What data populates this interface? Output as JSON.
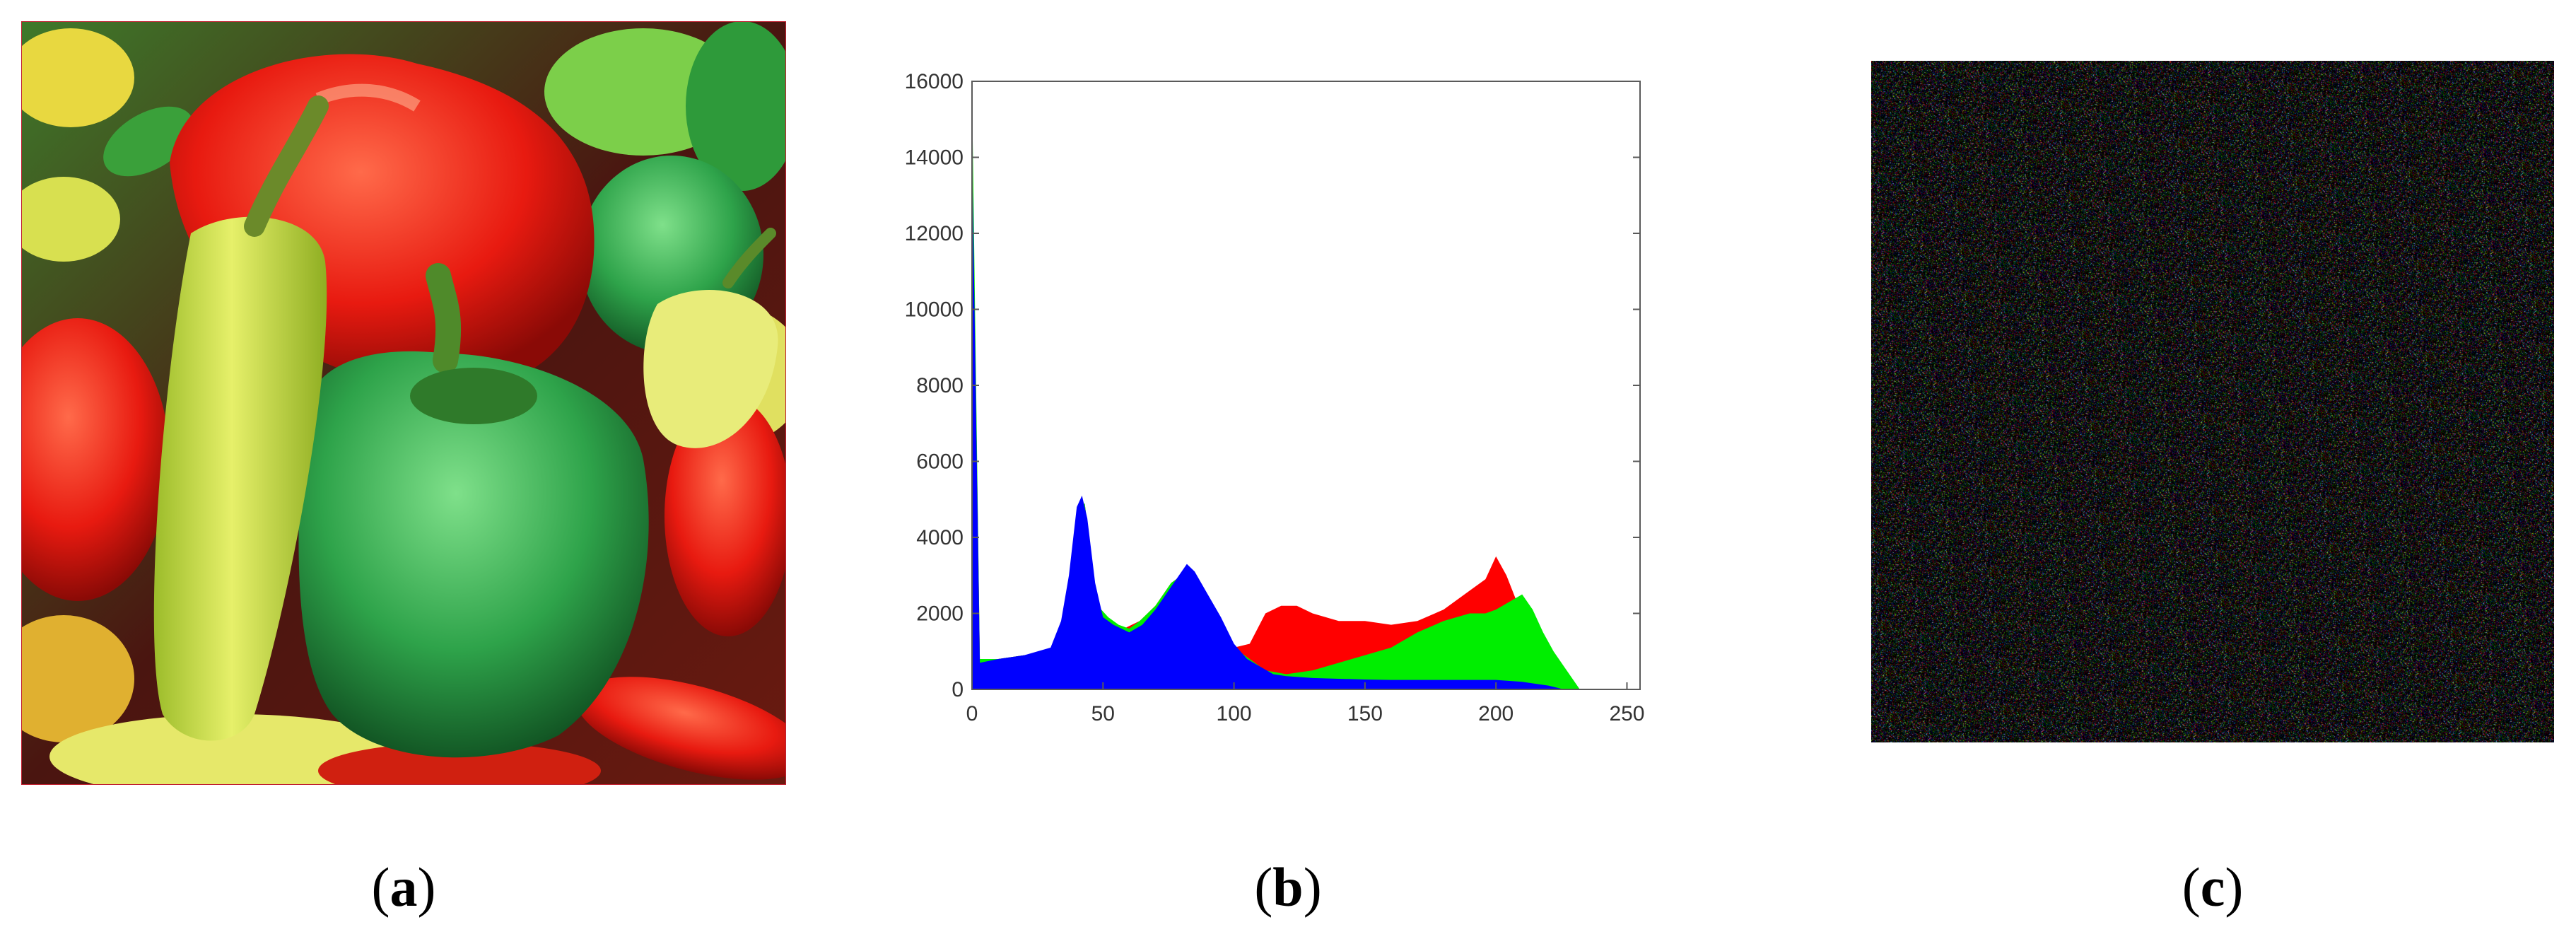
{
  "panels": {
    "a": {
      "label": "a"
    },
    "b": {
      "label": "b"
    },
    "c": {
      "label": "c"
    }
  },
  "chart_data": {
    "type": "bar",
    "title": "",
    "xlabel": "",
    "ylabel": "",
    "xlim": [
      0,
      255
    ],
    "ylim": [
      0,
      16000
    ],
    "xticks": [
      0,
      50,
      100,
      150,
      200,
      250
    ],
    "yticks": [
      0,
      2000,
      4000,
      6000,
      8000,
      10000,
      12000,
      14000,
      16000
    ],
    "grid": false,
    "legend": "none",
    "series": [
      {
        "color": "#ff0000",
        "points": [
          [
            0,
            15000
          ],
          [
            3,
            800
          ],
          [
            10,
            800
          ],
          [
            20,
            900
          ],
          [
            30,
            1000
          ],
          [
            35,
            1600
          ],
          [
            40,
            4600
          ],
          [
            43,
            4900
          ],
          [
            48,
            2200
          ],
          [
            52,
            1700
          ],
          [
            58,
            1600
          ],
          [
            64,
            1800
          ],
          [
            70,
            2200
          ],
          [
            76,
            2800
          ],
          [
            82,
            3100
          ],
          [
            88,
            2600
          ],
          [
            94,
            1600
          ],
          [
            100,
            1100
          ],
          [
            106,
            1200
          ],
          [
            112,
            2000
          ],
          [
            118,
            2200
          ],
          [
            124,
            2200
          ],
          [
            130,
            2000
          ],
          [
            140,
            1800
          ],
          [
            150,
            1800
          ],
          [
            160,
            1700
          ],
          [
            170,
            1800
          ],
          [
            180,
            2100
          ],
          [
            190,
            2600
          ],
          [
            196,
            2900
          ],
          [
            200,
            3500
          ],
          [
            204,
            3000
          ],
          [
            208,
            2300
          ],
          [
            212,
            1800
          ],
          [
            216,
            1200
          ],
          [
            220,
            900
          ],
          [
            224,
            600
          ],
          [
            228,
            200
          ],
          [
            232,
            0
          ],
          [
            255,
            0
          ]
        ]
      },
      {
        "color": "#00ee00",
        "points": [
          [
            0,
            15800
          ],
          [
            3,
            800
          ],
          [
            10,
            800
          ],
          [
            20,
            900
          ],
          [
            30,
            1000
          ],
          [
            35,
            1600
          ],
          [
            40,
            4600
          ],
          [
            43,
            4900
          ],
          [
            48,
            2200
          ],
          [
            52,
            1900
          ],
          [
            56,
            1700
          ],
          [
            60,
            1600
          ],
          [
            64,
            1800
          ],
          [
            70,
            2200
          ],
          [
            76,
            2800
          ],
          [
            82,
            3100
          ],
          [
            88,
            2600
          ],
          [
            94,
            1600
          ],
          [
            100,
            1100
          ],
          [
            106,
            800
          ],
          [
            112,
            500
          ],
          [
            120,
            400
          ],
          [
            130,
            500
          ],
          [
            140,
            700
          ],
          [
            150,
            900
          ],
          [
            160,
            1100
          ],
          [
            170,
            1500
          ],
          [
            180,
            1800
          ],
          [
            190,
            2000
          ],
          [
            196,
            2000
          ],
          [
            200,
            2100
          ],
          [
            205,
            2300
          ],
          [
            210,
            2500
          ],
          [
            214,
            2100
          ],
          [
            218,
            1500
          ],
          [
            222,
            1000
          ],
          [
            226,
            600
          ],
          [
            230,
            200
          ],
          [
            232,
            0
          ],
          [
            255,
            0
          ]
        ]
      },
      {
        "color": "#0000ff",
        "points": [
          [
            0,
            14400
          ],
          [
            3,
            700
          ],
          [
            10,
            800
          ],
          [
            20,
            900
          ],
          [
            25,
            1000
          ],
          [
            30,
            1100
          ],
          [
            34,
            1800
          ],
          [
            37,
            3000
          ],
          [
            40,
            4800
          ],
          [
            42,
            5100
          ],
          [
            44,
            4500
          ],
          [
            47,
            2800
          ],
          [
            50,
            1900
          ],
          [
            54,
            1700
          ],
          [
            60,
            1500
          ],
          [
            65,
            1700
          ],
          [
            70,
            2100
          ],
          [
            75,
            2600
          ],
          [
            80,
            3100
          ],
          [
            82,
            3300
          ],
          [
            85,
            3100
          ],
          [
            90,
            2500
          ],
          [
            95,
            1900
          ],
          [
            100,
            1200
          ],
          [
            105,
            800
          ],
          [
            110,
            600
          ],
          [
            115,
            400
          ],
          [
            120,
            350
          ],
          [
            130,
            300
          ],
          [
            140,
            280
          ],
          [
            150,
            260
          ],
          [
            160,
            250
          ],
          [
            170,
            250
          ],
          [
            180,
            250
          ],
          [
            190,
            250
          ],
          [
            200,
            250
          ],
          [
            210,
            200
          ],
          [
            220,
            100
          ],
          [
            226,
            0
          ],
          [
            255,
            0
          ]
        ]
      }
    ]
  }
}
